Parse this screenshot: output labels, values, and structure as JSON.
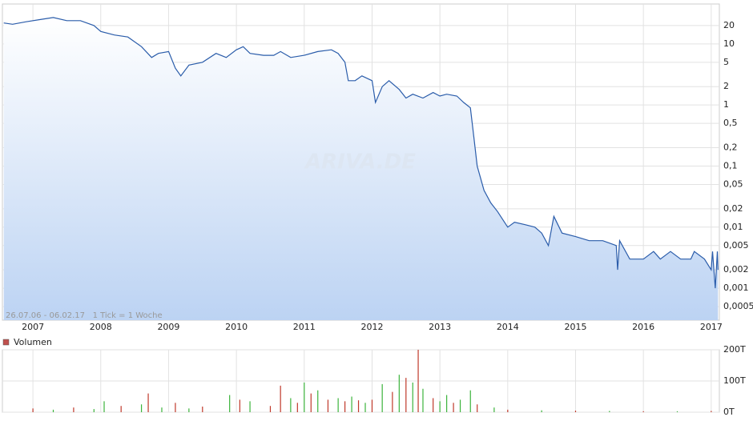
{
  "chart_data": [
    {
      "type": "line",
      "log_scale": true,
      "grid": true,
      "color": "#2a5caa",
      "annotation": "26.07.06 - 06.02.17   1 Tick = 1 Woche",
      "watermark": "ARIVA.DE",
      "x": [
        2006.57,
        2006.7,
        2006.9,
        2007.1,
        2007.3,
        2007.5,
        2007.7,
        2007.9,
        2008.0,
        2008.2,
        2008.4,
        2008.6,
        2008.75,
        2008.85,
        2009.0,
        2009.1,
        2009.18,
        2009.3,
        2009.5,
        2009.7,
        2009.85,
        2010.0,
        2010.1,
        2010.2,
        2010.4,
        2010.55,
        2010.65,
        2010.8,
        2011.0,
        2011.2,
        2011.4,
        2011.5,
        2011.6,
        2011.65,
        2011.75,
        2011.85,
        2012.0,
        2012.05,
        2012.15,
        2012.25,
        2012.4,
        2012.5,
        2012.6,
        2012.75,
        2012.9,
        2013.0,
        2013.1,
        2013.25,
        2013.35,
        2013.45,
        2013.5,
        2013.55,
        2013.65,
        2013.75,
        2013.85,
        2014.0,
        2014.1,
        2014.25,
        2014.4,
        2014.5,
        2014.6,
        2014.68,
        2014.8,
        2015.0,
        2015.2,
        2015.4,
        2015.6,
        2015.62,
        2015.65,
        2015.8,
        2016.0,
        2016.15,
        2016.25,
        2016.4,
        2016.55,
        2016.7,
        2016.75,
        2016.9,
        2017.0,
        2017.02,
        2017.06,
        2017.09,
        2017.1
      ],
      "values": [
        22,
        21,
        23,
        25,
        27,
        24,
        24,
        20,
        16,
        14,
        13,
        9,
        6,
        7,
        7.5,
        4,
        3,
        4.5,
        5,
        7,
        6,
        8,
        9,
        7,
        6.5,
        6.5,
        7.5,
        6,
        6.5,
        7.5,
        8,
        7,
        5,
        2.5,
        2.5,
        3,
        2.5,
        1.1,
        2,
        2.5,
        1.8,
        1.3,
        1.5,
        1.3,
        1.6,
        1.4,
        1.5,
        1.4,
        1.1,
        0.9,
        0.3,
        0.1,
        0.04,
        0.025,
        0.018,
        0.01,
        0.012,
        0.011,
        0.01,
        0.008,
        0.005,
        0.015,
        0.008,
        0.007,
        0.006,
        0.006,
        0.005,
        0.002,
        0.006,
        0.003,
        0.003,
        0.004,
        0.003,
        0.004,
        0.003,
        0.003,
        0.004,
        0.003,
        0.002,
        0.004,
        0.001,
        0.004,
        0.002
      ],
      "xlim": [
        2006.55,
        2017.12
      ],
      "xticks": [
        2007,
        2008,
        2009,
        2010,
        2011,
        2012,
        2013,
        2014,
        2015,
        2016,
        2017
      ],
      "ylim": [
        0.0003,
        45
      ],
      "yticks": [
        {
          "value": 0.0005,
          "label": "0,0005"
        },
        {
          "value": 0.001,
          "label": "0,001"
        },
        {
          "value": 0.002,
          "label": "0,002"
        },
        {
          "value": 0.005,
          "label": "0,005"
        },
        {
          "value": 0.01,
          "label": "0,01"
        },
        {
          "value": 0.02,
          "label": "0,02"
        },
        {
          "value": 0.05,
          "label": "0,05"
        },
        {
          "value": 0.1,
          "label": "0,1"
        },
        {
          "value": 0.2,
          "label": "0,2"
        },
        {
          "value": 0.5,
          "label": "0,5"
        },
        1,
        2,
        5,
        10,
        20
      ]
    },
    {
      "type": "bar",
      "legend": "Volumen",
      "legend_color": "#c0504d",
      "x": [
        2007.0,
        2007.3,
        2007.6,
        2007.9,
        2008.05,
        2008.3,
        2008.6,
        2008.7,
        2008.9,
        2009.1,
        2009.3,
        2009.5,
        2009.9,
        2010.05,
        2010.2,
        2010.5,
        2010.65,
        2010.8,
        2010.9,
        2011.0,
        2011.1,
        2011.2,
        2011.35,
        2011.5,
        2011.6,
        2011.7,
        2011.8,
        2011.9,
        2012.0,
        2012.15,
        2012.3,
        2012.4,
        2012.5,
        2012.6,
        2012.68,
        2012.75,
        2012.9,
        2013.0,
        2013.1,
        2013.2,
        2013.3,
        2013.45,
        2013.55,
        2013.8,
        2014.0,
        2014.5,
        2015.0,
        2015.5,
        2016.0,
        2016.5,
        2017.0
      ],
      "values": [
        12,
        8,
        15,
        10,
        35,
        20,
        25,
        60,
        15,
        30,
        12,
        18,
        55,
        40,
        35,
        20,
        85,
        45,
        30,
        95,
        60,
        70,
        40,
        45,
        35,
        50,
        38,
        30,
        40,
        90,
        65,
        120,
        110,
        95,
        200,
        75,
        45,
        35,
        55,
        30,
        40,
        70,
        25,
        15,
        8,
        6,
        5,
        4,
        3,
        3,
        4
      ],
      "colors": [
        "#c0392b",
        "#3cb43c",
        "#c0392b",
        "#3cb43c",
        "#3cb43c",
        "#c0392b",
        "#3cb43c",
        "#c0392b",
        "#3cb43c",
        "#c0392b",
        "#3cb43c",
        "#c0392b",
        "#3cb43c",
        "#c0392b",
        "#3cb43c",
        "#c0392b",
        "#c0392b",
        "#3cb43c",
        "#c0392b",
        "#3cb43c",
        "#c0392b",
        "#3cb43c",
        "#c0392b",
        "#3cb43c",
        "#c0392b",
        "#3cb43c",
        "#c0392b",
        "#3cb43c",
        "#c0392b",
        "#3cb43c",
        "#c0392b",
        "#3cb43c",
        "#c0392b",
        "#3cb43c",
        "#c0392b",
        "#3cb43c",
        "#c0392b",
        "#3cb43c",
        "#3cb43c",
        "#c0392b",
        "#3cb43c",
        "#3cb43c",
        "#c0392b",
        "#3cb43c",
        "#c0392b",
        "#3cb43c",
        "#c0392b",
        "#3cb43c",
        "#c0392b",
        "#3cb43c",
        "#c0392b"
      ],
      "ylim": [
        0,
        200
      ],
      "yticks": [
        {
          "value": 0,
          "label": "0T"
        },
        {
          "value": 100,
          "label": "100T"
        },
        {
          "value": 200,
          "label": "200T"
        }
      ]
    }
  ]
}
